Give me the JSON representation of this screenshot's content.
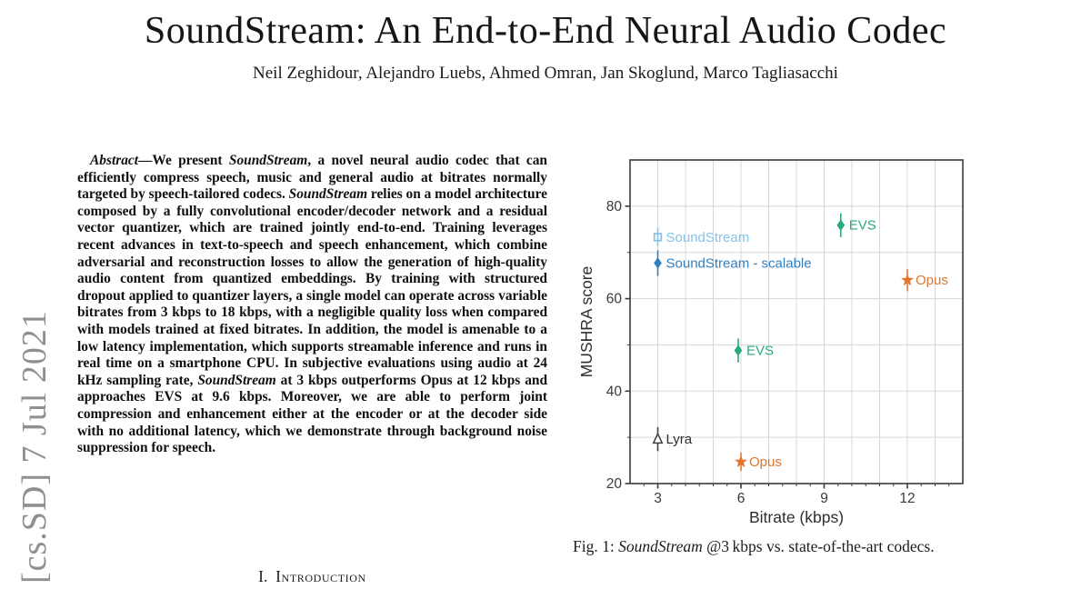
{
  "page": {
    "arxiv_stamp": "[cs.SD] 7 Jul 2021",
    "title": "SoundStream: An End-to-End Neural Audio Codec",
    "authors": "Neil Zeghidour, Alejandro Luebs, Ahmed Omran, Jan Skoglund, Marco Tagliasacchi"
  },
  "abstract": {
    "segments": [
      {
        "text": "Abstract",
        "italic": true
      },
      {
        "text": "—We present ",
        "italic": false
      },
      {
        "text": "SoundStream",
        "italic": true
      },
      {
        "text": ", a novel neural audio codec that can efficiently compress speech, music and general audio at bitrates normally targeted by speech-tailored codecs. ",
        "italic": false
      },
      {
        "text": "SoundStream",
        "italic": true
      },
      {
        "text": " relies on a model architecture composed by a fully convolutional encoder/decoder network and a residual vector quantizer, which are trained jointly end-to-end. Training leverages recent advances in text-to-speech and speech enhancement, which combine adversarial and reconstruction losses to allow the generation of high-quality audio content from quantized embeddings. By training with structured dropout applied to quantizer layers, a single model can operate across variable bitrates from 3 kbps to 18 kbps, with a negligible quality loss when compared with models trained at fixed bitrates. In addition, the model is amenable to a low latency implementation, which supports streamable inference and runs in real time on a smartphone CPU. In subjective evaluations using audio at 24 kHz sampling rate, ",
        "italic": false
      },
      {
        "text": "SoundStream",
        "italic": true
      },
      {
        "text": " at 3 kbps outperforms Opus at 12 kbps and approaches EVS at 9.6 kbps. Moreover, we are able to perform joint compression and enhancement either at the encoder or at the decoder side with no additional latency, which we demonstrate through background noise suppression for speech.",
        "italic": false
      }
    ]
  },
  "section": {
    "numeral": "I.",
    "title": "Introduction"
  },
  "figure": {
    "caption_segments": [
      {
        "text": "Fig. 1: ",
        "italic": false
      },
      {
        "text": "SoundStream",
        "italic": true
      },
      {
        "text": " @3 kbps vs. state-of-the-art codecs.",
        "italic": false
      }
    ]
  },
  "chart_data": {
    "type": "scatter",
    "title": "",
    "xlabel": "Bitrate (kbps)",
    "ylabel": "MUSHRA score",
    "xlim": [
      2,
      14
    ],
    "ylim": [
      20,
      90
    ],
    "x_major_ticks": [
      3,
      6,
      9,
      12
    ],
    "x_minor_tick_step": 0.5,
    "y_major_ticks": [
      20,
      40,
      60,
      80
    ],
    "y_minor_ticks": [
      30,
      50,
      70
    ],
    "x_gridlines": [
      3,
      4,
      5,
      6,
      7,
      8,
      9,
      10,
      11,
      12,
      13
    ],
    "y_gridlines": [
      30,
      40,
      50,
      60,
      70,
      80
    ],
    "grid": true,
    "legend_position": "labels-beside-points",
    "colors": {
      "soundstream": "#85c3ea",
      "soundstream_scalable": "#2e7fc1",
      "evs": "#27ab7a",
      "opus": "#e0762f",
      "lyra": "#3f3f3f",
      "gridline": "#d8d8d8",
      "axis": "#3a3a3a"
    },
    "points": [
      {
        "label": "SoundStream",
        "x": 3,
        "y": 73.3,
        "yerr": 1.2,
        "marker": "square-open",
        "color": "#85c3ea",
        "label_color": "#85c3ea"
      },
      {
        "label": "SoundStream - scalable",
        "x": 3,
        "y": 67.7,
        "yerr": 2.0,
        "marker": "diamond",
        "color": "#2e7fc1",
        "label_color": "#2e7fc1"
      },
      {
        "label": "EVS",
        "x": 9.6,
        "y": 75.9,
        "yerr": 1.8,
        "marker": "diamond",
        "color": "#27ab7a",
        "label_color": "#27ab7a"
      },
      {
        "label": "Opus",
        "x": 12,
        "y": 64.0,
        "yerr": 1.6,
        "marker": "star",
        "color": "#e0762f",
        "label_color": "#e0762f"
      },
      {
        "label": "EVS",
        "x": 5.9,
        "y": 48.8,
        "yerr": 1.8,
        "marker": "diamond",
        "color": "#27ab7a",
        "label_color": "#27ab7a"
      },
      {
        "label": "Lyra",
        "x": 3,
        "y": 29.6,
        "yerr": 1.8,
        "marker": "triangle-open",
        "color": "#3f3f3f",
        "label_color": "#2b2b2b"
      },
      {
        "label": "Opus",
        "x": 6,
        "y": 24.7,
        "yerr": 1.2,
        "marker": "star",
        "color": "#e0762f",
        "label_color": "#e0762f"
      }
    ]
  }
}
